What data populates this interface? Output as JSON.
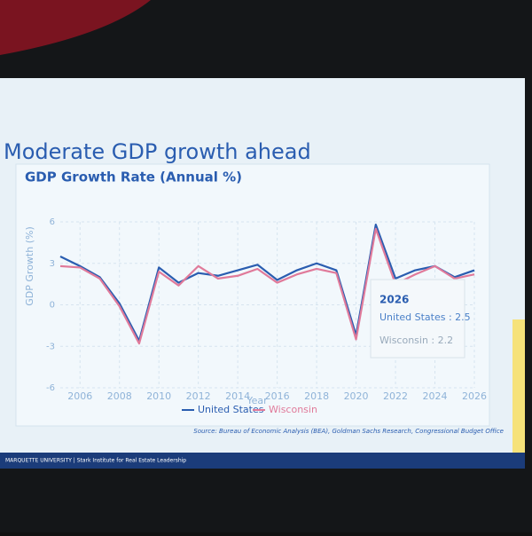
{
  "slide": {
    "title": "Moderate GDP growth ahead",
    "source": "Source: Bureau of Economic Analysis (BEA), Goldman Sachs Research, Congressional Budget Office",
    "footer": "MARQUETTE UNIVERSITY | Stark Institute for Real Estate Leadership"
  },
  "chart_data": {
    "type": "line",
    "title": "GDP Growth Rate (Annual %)",
    "x_label": "Year",
    "y_label": "GDP Growth (%)",
    "x": [
      2005,
      2006,
      2007,
      2008,
      2009,
      2010,
      2011,
      2012,
      2013,
      2014,
      2015,
      2016,
      2017,
      2018,
      2019,
      2020,
      2021,
      2022,
      2023,
      2024,
      2025,
      2026
    ],
    "series": [
      {
        "name": "United States",
        "color": "#2a5db0",
        "values": [
          3.5,
          2.8,
          2.0,
          0.1,
          -2.6,
          2.7,
          1.6,
          2.3,
          2.1,
          2.5,
          2.9,
          1.8,
          2.5,
          3.0,
          2.5,
          -2.2,
          5.8,
          1.9,
          2.5,
          2.8,
          2.0,
          2.5
        ]
      },
      {
        "name": "Wisconsin",
        "color": "#e07a9a",
        "values": [
          2.8,
          2.7,
          1.9,
          -0.1,
          -2.8,
          2.4,
          1.4,
          2.8,
          1.9,
          2.1,
          2.6,
          1.6,
          2.2,
          2.6,
          2.3,
          -2.5,
          5.5,
          1.5,
          2.2,
          2.8,
          1.9,
          2.2
        ]
      }
    ],
    "xlim": [
      2005,
      2026
    ],
    "xticks": [
      2006,
      2008,
      2010,
      2012,
      2014,
      2016,
      2018,
      2020,
      2022,
      2024,
      2026
    ],
    "ylim": [
      -6,
      6
    ],
    "yticks": [
      -6,
      -3,
      0,
      3,
      6
    ],
    "grid": true,
    "tooltip": {
      "title": "2026",
      "rows": [
        "United States : 2.5",
        "Wisconsin : 2.2"
      ]
    }
  }
}
